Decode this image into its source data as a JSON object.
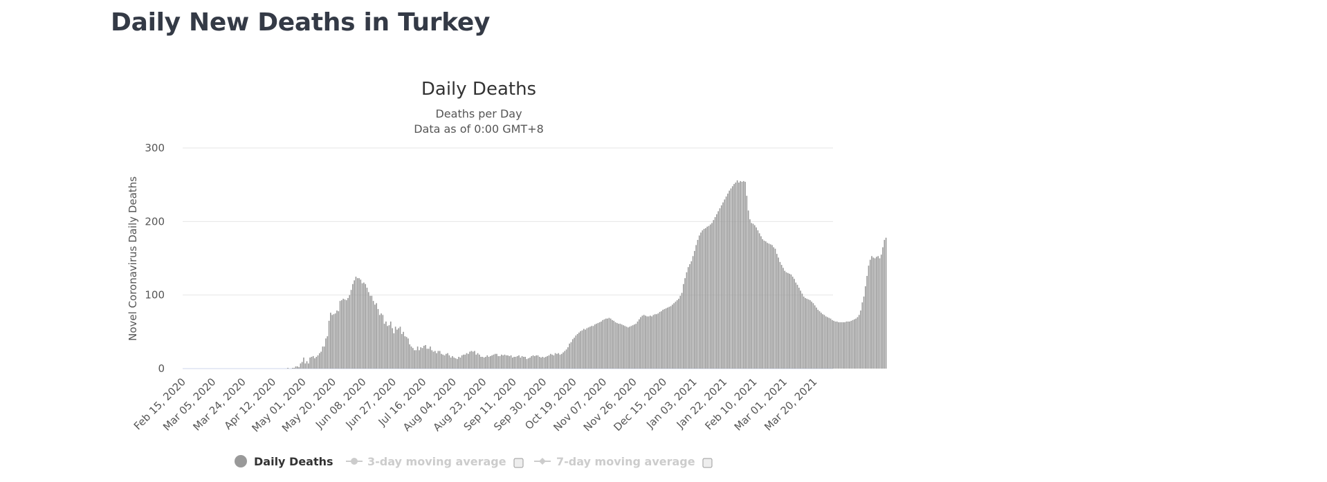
{
  "page": {
    "title": "Daily New Deaths in Turkey"
  },
  "chart_data": {
    "type": "bar",
    "title": "Daily Deaths",
    "subtitle": [
      "Deaths per Day",
      "Data as of 0:00 GMT+8"
    ],
    "xlabel": "",
    "ylabel": "Novel Coronavirus Daily Deaths",
    "ylim": [
      0,
      300
    ],
    "yticks": [
      0,
      100,
      200,
      300
    ],
    "grid": true,
    "legend_position": "bottom",
    "colors": {
      "bars": "#999999",
      "grid": "#e6e6e6",
      "baseline": "#ccd6eb",
      "disabled": "#cccccc"
    },
    "x_start": "2020-02-15",
    "x_end": "2021-03-31",
    "xticks": [
      "Feb 15, 2020",
      "Mar 05, 2020",
      "Mar 24, 2020",
      "Apr 12, 2020",
      "May 01, 2020",
      "May 20, 2020",
      "Jun 08, 2020",
      "Jun 27, 2020",
      "Jul 16, 2020",
      "Aug 04, 2020",
      "Aug 23, 2020",
      "Sep 11, 2020",
      "Sep 30, 2020",
      "Oct 19, 2020",
      "Nov 07, 2020",
      "Nov 26, 2020",
      "Dec 15, 2020",
      "Jan 03, 2021",
      "Jan 22, 2021",
      "Feb 10, 2021",
      "Mar 01, 2021",
      "Mar 20, 2021"
    ],
    "series": [
      {
        "name": "Daily Deaths",
        "values": [
          0,
          0,
          0,
          0,
          0,
          0,
          0,
          0,
          0,
          0,
          0,
          0,
          0,
          0,
          0,
          0,
          0,
          0,
          0,
          0,
          0,
          0,
          0,
          0,
          0,
          0,
          0,
          0,
          0,
          0,
          0,
          0,
          0,
          0,
          0,
          0,
          0,
          0,
          0,
          0,
          0,
          0,
          0,
          0,
          0,
          0,
          0,
          0,
          0,
          0,
          0,
          0,
          0,
          0,
          0,
          0,
          0,
          0,
          0,
          0,
          0,
          0,
          0,
          0,
          0,
          0,
          1,
          0,
          0,
          1,
          1,
          3,
          3,
          2,
          7,
          9,
          15,
          7,
          10,
          7,
          15,
          16,
          17,
          14,
          16,
          18,
          21,
          23,
          30,
          30,
          41,
          44,
          65,
          76,
          73,
          74,
          75,
          79,
          78,
          92,
          93,
          95,
          94,
          93,
          96,
          100,
          107,
          115,
          120,
          125,
          123,
          123,
          121,
          116,
          117,
          115,
          110,
          104,
          99,
          99,
          92,
          87,
          89,
          81,
          73,
          75,
          73,
          61,
          64,
          58,
          59,
          64,
          55,
          48,
          57,
          53,
          55,
          57,
          47,
          50,
          44,
          43,
          41,
          33,
          30,
          28,
          25,
          25,
          30,
          25,
          29,
          28,
          31,
          32,
          27,
          27,
          30,
          25,
          23,
          24,
          21,
          24,
          24,
          20,
          19,
          18,
          20,
          21,
          18,
          15,
          17,
          15,
          14,
          13,
          16,
          15,
          18,
          19,
          19,
          21,
          20,
          23,
          24,
          23,
          24,
          19,
          21,
          19,
          16,
          16,
          15,
          16,
          18,
          16,
          17,
          18,
          19,
          20,
          20,
          17,
          17,
          19,
          18,
          19,
          18,
          18,
          17,
          18,
          15,
          16,
          16,
          17,
          18,
          15,
          17,
          16,
          16,
          13,
          14,
          15,
          17,
          18,
          17,
          18,
          18,
          16,
          15,
          16,
          15,
          16,
          17,
          18,
          20,
          19,
          18,
          21,
          20,
          21,
          19,
          20,
          22,
          24,
          26,
          29,
          34,
          36,
          40,
          42,
          45,
          47,
          49,
          51,
          52,
          54,
          53,
          55,
          56,
          57,
          58,
          58,
          60,
          61,
          62,
          63,
          64,
          66,
          67,
          68,
          68,
          69,
          68,
          66,
          65,
          63,
          62,
          61,
          61,
          60,
          59,
          58,
          57,
          56,
          57,
          58,
          59,
          60,
          61,
          64,
          67,
          70,
          72,
          73,
          72,
          71,
          71,
          72,
          71,
          73,
          74,
          74,
          75,
          77,
          78,
          80,
          81,
          82,
          83,
          84,
          85,
          87,
          89,
          91,
          93,
          95,
          99,
          103,
          115,
          123,
          131,
          138,
          142,
          146,
          153,
          160,
          168,
          175,
          181,
          185,
          188,
          190,
          191,
          193,
          194,
          196,
          198,
          202,
          206,
          210,
          214,
          218,
          222,
          226,
          230,
          234,
          238,
          242,
          245,
          248,
          251,
          253,
          256,
          253,
          255,
          254,
          255,
          254,
          235,
          215,
          203,
          198,
          197,
          195,
          192,
          188,
          184,
          180,
          176,
          174,
          173,
          171,
          170,
          169,
          168,
          165,
          163,
          156,
          151,
          145,
          141,
          137,
          133,
          131,
          130,
          129,
          128,
          125,
          122,
          117,
          114,
          110,
          106,
          102,
          98,
          96,
          95,
          94,
          93,
          91,
          89,
          86,
          83,
          80,
          78,
          76,
          74,
          73,
          71,
          70,
          69,
          68,
          66,
          65,
          64,
          64,
          63,
          63,
          63,
          63,
          63,
          64,
          64,
          64,
          65,
          66,
          67,
          68,
          70,
          73,
          79,
          90,
          98,
          112,
          126,
          140,
          148,
          153,
          151,
          150,
          152,
          153,
          150,
          155,
          165,
          175,
          178
        ]
      },
      {
        "name": "3-day moving average",
        "values": []
      },
      {
        "name": "7-day moving average",
        "values": []
      }
    ]
  }
}
